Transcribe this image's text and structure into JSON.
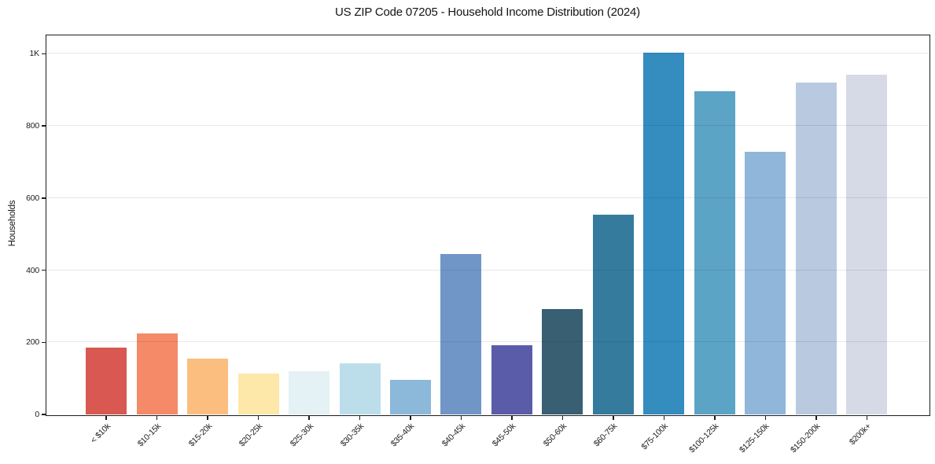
{
  "chart_data": {
    "type": "bar",
    "title": "US ZIP Code 07205 - Household Income Distribution (2024)",
    "xlabel": "",
    "ylabel": "Households",
    "categories": [
      "< $10k",
      "$10-15k",
      "$15-20k",
      "$20-25k",
      "$25-30k",
      "$30-35k",
      "$35-40k",
      "$40-45k",
      "$45-50k",
      "$50-60k",
      "$60-75k",
      "$75-100k",
      "$100-125k",
      "$125-150k",
      "$150-200k",
      "$200k+"
    ],
    "values": [
      186,
      224,
      155,
      113,
      120,
      142,
      95,
      446,
      193,
      293,
      553,
      1003,
      897,
      728,
      920,
      943
    ],
    "bar_colors": [
      "#d95851",
      "#f48a68",
      "#fcbe7e",
      "#fde7a9",
      "#e4f1f5",
      "#bcdeeb",
      "#8cb8da",
      "#7096c8",
      "#5a5caa",
      "#386072",
      "#357b9e",
      "#348cbf",
      "#5ba4c6",
      "#90b6d9",
      "#b9c9e0",
      "#d6d9e6"
    ],
    "ylim": [
      0,
      1051
    ],
    "ytick_values": [
      0,
      200,
      400,
      600,
      800,
      1000
    ],
    "ytick_labels": [
      "0",
      "200",
      "400",
      "600",
      "800",
      "1K"
    ],
    "grid": true,
    "legend": false,
    "text_color": "#1c1c1c",
    "background_color": "#ffffff"
  }
}
